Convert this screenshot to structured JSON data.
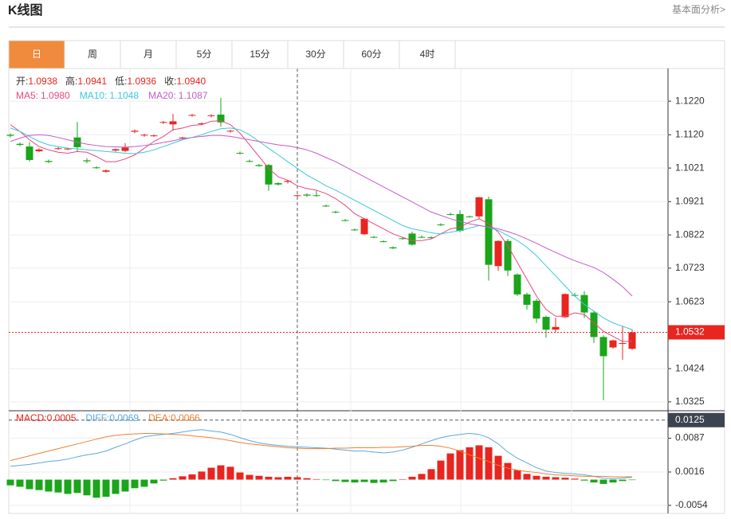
{
  "header": {
    "title": "K线图",
    "link": "基本面分析>"
  },
  "tabs": [
    "日",
    "周",
    "月",
    "5分",
    "15分",
    "30分",
    "60分",
    "4时"
  ],
  "chart_data": [
    {
      "type": "candlestick",
      "up_color": "#e8251f",
      "down_color": "#1aa51a",
      "grid": true,
      "ylim": [
        1.0301,
        1.1315
      ],
      "yticks": [
        {
          "value": 1.122,
          "label": "1.1220"
        },
        {
          "value": 1.112,
          "label": "1.1120"
        },
        1.1021,
        1.0921,
        1.0822,
        1.0723,
        1.0623,
        1.0424,
        1.0325
      ],
      "last_price": 1.0532,
      "readout": {
        "ohlc": [
          {
            "label": "开:",
            "value": "1.0938"
          },
          {
            "label": "高:",
            "value": "1.0941"
          },
          {
            "label": "低:",
            "value": "1.0936"
          },
          {
            "label": "收:",
            "value": "1.0940"
          }
        ],
        "ma": [
          {
            "label": "MA5:",
            "value": "1.0980"
          },
          {
            "label": "MA10:",
            "value": "1.1048"
          },
          {
            "label": "MA20:",
            "value": "1.1087"
          }
        ]
      },
      "open": [
        1.112,
        1.1093,
        1.1085,
        1.1071,
        1.1042,
        1.1079,
        1.1077,
        1.1112,
        1.1044,
        1.1023,
        1.101,
        1.1073,
        1.1072,
        1.1129,
        1.1118,
        1.1117,
        1.1156,
        1.1151,
        1.111,
        1.1177,
        1.1152,
        1.1176,
        1.118,
        1.113,
        1.1066,
        1.1042,
        1.103,
        1.103,
        1.0976,
        1.098,
        1.0938,
        1.0942,
        1.094,
        1.0909,
        1.0891,
        1.0866,
        1.0838,
        1.0824,
        1.0816,
        1.0803,
        1.0785,
        1.0812,
        1.0826,
        1.0816,
        1.0815,
        1.0853,
        1.0884,
        1.0884,
        1.0877,
        1.0877,
        1.0928,
        1.0729,
        1.0804,
        1.0704,
        1.0645,
        1.0626,
        1.0578,
        1.054,
        1.0577,
        1.0643,
        1.0643,
        1.0591,
        1.0518,
        1.0487,
        1.0499,
        1.0483
      ],
      "high": [
        1.1124,
        1.1097,
        1.1098,
        1.108,
        1.1046,
        1.1083,
        1.1082,
        1.1158,
        1.105,
        1.1026,
        1.1017,
        1.1079,
        1.1095,
        1.1136,
        1.1123,
        1.1121,
        1.1161,
        1.1182,
        1.1114,
        1.1182,
        1.1157,
        1.1181,
        1.123,
        1.1135,
        1.107,
        1.1046,
        1.1033,
        1.1033,
        1.0979,
        1.0985,
        1.0941,
        1.0946,
        1.0953,
        1.0912,
        1.0894,
        1.0869,
        1.0841,
        1.0872,
        1.0819,
        1.0806,
        1.0788,
        1.0815,
        1.0832,
        1.082,
        1.0818,
        1.0857,
        1.0888,
        1.0895,
        1.088,
        1.0935,
        1.0936,
        1.0806,
        1.081,
        1.0708,
        1.065,
        1.0632,
        1.0582,
        1.0575,
        1.0648,
        1.065,
        1.0655,
        1.0595,
        1.0523,
        1.051,
        1.055,
        1.0541
      ],
      "low": [
        1.1112,
        1.1086,
        1.104,
        1.1068,
        1.1036,
        1.1075,
        1.1074,
        1.107,
        1.1035,
        1.1019,
        1.1007,
        1.107,
        1.1068,
        1.1125,
        1.1114,
        1.1114,
        1.1152,
        1.1132,
        1.1106,
        1.1174,
        1.1149,
        1.1172,
        1.1144,
        1.1126,
        1.1062,
        1.1038,
        1.1025,
        1.0953,
        1.0969,
        1.0975,
        1.0936,
        1.0935,
        1.0935,
        1.0905,
        1.0886,
        1.0862,
        1.0834,
        1.0822,
        1.0812,
        1.08,
        1.078,
        1.0808,
        1.079,
        1.0812,
        1.0811,
        1.0849,
        1.088,
        1.083,
        1.0874,
        1.087,
        1.0686,
        1.0715,
        1.07,
        1.064,
        1.06,
        1.056,
        1.0516,
        1.0533,
        1.0575,
        1.0638,
        1.0575,
        1.05,
        1.033,
        1.0483,
        1.045,
        1.048
      ],
      "close": [
        1.1117,
        1.109,
        1.1045,
        1.1076,
        1.1039,
        1.108,
        1.1079,
        1.1083,
        1.1041,
        1.1021,
        1.1014,
        1.1077,
        1.1082,
        1.1132,
        1.112,
        1.1118,
        1.1158,
        1.116,
        1.1112,
        1.1179,
        1.1154,
        1.1178,
        1.1157,
        1.1132,
        1.1064,
        1.104,
        1.1027,
        1.0972,
        1.0972,
        1.0983,
        1.094,
        1.0939,
        1.0938,
        1.0907,
        1.0889,
        1.0864,
        1.0836,
        1.087,
        1.0814,
        1.0802,
        1.0782,
        1.081,
        1.0793,
        1.0815,
        1.0813,
        1.0851,
        1.0882,
        1.0834,
        1.0876,
        1.0934,
        1.0733,
        1.0804,
        1.0716,
        1.0645,
        1.0614,
        1.0573,
        1.054,
        1.0548,
        1.0646,
        1.0641,
        1.0591,
        1.0518,
        1.0461,
        1.0508,
        1.05,
        1.0532
      ],
      "series": [
        {
          "color": "#e8487a",
          "values": [
            1.115,
            1.113,
            1.1105,
            1.1085,
            1.1075,
            1.1068,
            1.1065,
            1.107,
            1.1068,
            1.1055,
            1.104,
            1.104,
            1.1048,
            1.106,
            1.108,
            1.11,
            1.1115,
            1.1135,
            1.114,
            1.1148,
            1.115,
            1.116,
            1.1162,
            1.115,
            1.1125,
            1.109,
            1.1055,
            1.102,
            1.0995,
            1.0985,
            1.0968,
            1.096,
            1.0955,
            1.0945,
            1.093,
            1.091,
            1.0885,
            1.087,
            1.0855,
            1.084,
            1.0825,
            1.0815,
            1.0805,
            1.0805,
            1.081,
            1.0825,
            1.084,
            1.0845,
            1.086,
            1.087,
            1.0855,
            1.083,
            1.079,
            1.074,
            1.069,
            1.064,
            1.06,
            1.058,
            1.058,
            1.059,
            1.0585,
            1.056,
            1.0535,
            1.052,
            1.0505,
            1.0505
          ]
        },
        {
          "color": "#3cc7dc",
          "values": [
            1.114,
            1.113,
            1.1115,
            1.11,
            1.109,
            1.1085,
            1.108,
            1.1078,
            1.1075,
            1.1073,
            1.107,
            1.1068,
            1.1065,
            1.1064,
            1.1068,
            1.1075,
            1.1085,
            1.1095,
            1.1105,
            1.1112,
            1.112,
            1.113,
            1.1138,
            1.114,
            1.1135,
            1.112,
            1.11,
            1.108,
            1.106,
            1.104,
            1.102,
            1.1,
            1.0985,
            1.0968,
            1.0955,
            1.094,
            1.0925,
            1.091,
            1.0895,
            1.088,
            1.0865,
            1.085,
            1.084,
            1.0835,
            1.0828,
            1.0825,
            1.083,
            1.0835,
            1.0842,
            1.085,
            1.0845,
            1.0835,
            1.082,
            1.0805,
            1.0785,
            1.076,
            1.073,
            1.07,
            1.067,
            1.064,
            1.0615,
            1.0595,
            1.0575,
            1.056,
            1.055,
            1.054
          ]
        },
        {
          "color": "#c45bc7",
          "values": [
            1.11,
            1.111,
            1.1118,
            1.112,
            1.1118,
            1.1112,
            1.1105,
            1.1098,
            1.1092,
            1.1088,
            1.1085,
            1.1084,
            1.1083,
            1.1085,
            1.1088,
            1.1092,
            1.1097,
            1.1102,
            1.1108,
            1.1112,
            1.1115,
            1.1118,
            1.1118,
            1.1115,
            1.111,
            1.1105,
            1.11,
            1.1095,
            1.109,
            1.1087,
            1.1082,
            1.1075,
            1.1065,
            1.1052,
            1.104,
            1.1025,
            1.101,
            1.0995,
            1.098,
            1.0965,
            1.095,
            1.0935,
            1.092,
            1.0905,
            1.089,
            1.088,
            1.087,
            1.0862,
            1.0855,
            1.085,
            1.0845,
            1.084,
            1.0832,
            1.0822,
            1.081,
            1.0797,
            1.0783,
            1.077,
            1.0757,
            1.0745,
            1.0735,
            1.0725,
            1.071,
            1.069,
            1.0668,
            1.064
          ]
        }
      ]
    },
    {
      "type": "macd",
      "up_color": "#e8251f",
      "down_color": "#1aa51a",
      "grid": true,
      "ylim": [
        -0.0071,
        0.0143
      ],
      "yticks": [
        0.0087,
        0.0016,
        -0.0054
      ],
      "cursor_value": 0.0125,
      "readout": [
        {
          "label": "MACD:",
          "value": "0.0005"
        },
        {
          "label": "DIFF:",
          "value": "0.0069"
        },
        {
          "label": "DEA:",
          "value": "0.0066"
        }
      ],
      "values": [
        -0.0012,
        -0.0015,
        -0.002,
        -0.0022,
        -0.0025,
        -0.0027,
        -0.003,
        -0.0028,
        -0.0033,
        -0.0038,
        -0.0036,
        -0.003,
        -0.0025,
        -0.0018,
        -0.0015,
        -0.0008,
        -0.0002,
        0.0003,
        0.0007,
        0.0011,
        0.0017,
        0.0025,
        0.003,
        0.0027,
        0.0015,
        0.001,
        0.0008,
        0.0006,
        0.0005,
        0.0006,
        0.0005,
        0.0003,
        0.0001,
        -0.0001,
        -0.0003,
        -0.0005,
        -0.0006,
        -0.0005,
        -0.0007,
        -0.0006,
        -0.0003,
        0.0001,
        0.0006,
        0.0012,
        0.0022,
        0.004,
        0.0055,
        0.0062,
        0.0068,
        0.0072,
        0.0068,
        0.005,
        0.0035,
        0.002,
        0.0012,
        0.0008,
        0.0006,
        0.0005,
        0.0004,
        0.0002,
        -0.0002,
        -0.0006,
        -0.0009,
        -0.0006,
        -0.0003,
        -0.0001
      ],
      "series": [
        {
          "color": "#5ba8e0",
          "values": [
            0.0028,
            0.003,
            0.0032,
            0.0035,
            0.0038,
            0.004,
            0.0043,
            0.0048,
            0.0052,
            0.0055,
            0.006,
            0.0068,
            0.0075,
            0.0083,
            0.009,
            0.0093,
            0.0095,
            0.0097,
            0.01,
            0.0103,
            0.0105,
            0.0102,
            0.01,
            0.0095,
            0.0088,
            0.0082,
            0.0077,
            0.0074,
            0.0072,
            0.007,
            0.0069,
            0.0068,
            0.0067,
            0.0066,
            0.0064,
            0.0062,
            0.006,
            0.006,
            0.0058,
            0.0056,
            0.0058,
            0.0062,
            0.0068,
            0.0075,
            0.0082,
            0.0088,
            0.0092,
            0.0095,
            0.0097,
            0.0095,
            0.0088,
            0.0075,
            0.0058,
            0.0045,
            0.0035,
            0.0025,
            0.0018,
            0.0015,
            0.0013,
            0.0012,
            0.001,
            0.0007,
            0.0003,
            0.0002,
            0.0003,
            0.0005
          ]
        },
        {
          "color": "#f08030",
          "values": [
            0.004,
            0.0045,
            0.005,
            0.0055,
            0.006,
            0.0065,
            0.007,
            0.0075,
            0.008,
            0.0085,
            0.009,
            0.0093,
            0.0095,
            0.0096,
            0.0097,
            0.0097,
            0.0096,
            0.0095,
            0.0094,
            0.0092,
            0.009,
            0.0088,
            0.0085,
            0.0082,
            0.0078,
            0.0075,
            0.0073,
            0.0071,
            0.0069,
            0.0067,
            0.0066,
            0.0065,
            0.0065,
            0.0065,
            0.0066,
            0.0066,
            0.0067,
            0.0067,
            0.0067,
            0.0068,
            0.0068,
            0.0069,
            0.007,
            0.0072,
            0.0072,
            0.007,
            0.0066,
            0.006,
            0.0052,
            0.0045,
            0.0038,
            0.003,
            0.0024,
            0.002,
            0.0017,
            0.0015,
            0.0012,
            0.001,
            0.0009,
            0.0008,
            0.0007,
            0.0007,
            0.0007,
            0.0006,
            0.0006,
            0.0006
          ]
        }
      ]
    }
  ]
}
